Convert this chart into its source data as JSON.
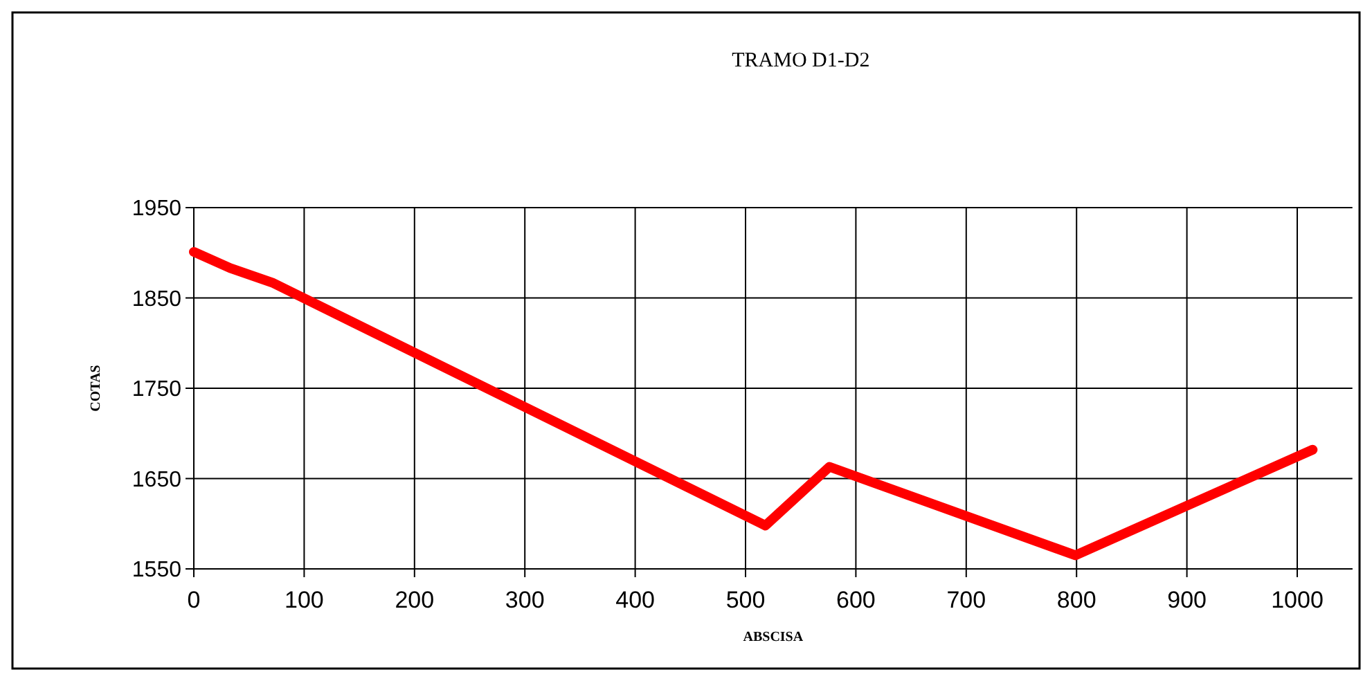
{
  "chart_data": {
    "type": "line",
    "title": "TRAMO D1-D2",
    "xlabel": "ABSCISA",
    "ylabel": "COTAS",
    "x": [
      0,
      33,
      71,
      518,
      576,
      799,
      1014
    ],
    "series": [
      {
        "color": "#ff0000",
        "values": [
          1901,
          1883,
          1867,
          1598,
          1663,
          1565,
          1682
        ]
      }
    ],
    "xlim": [
      0,
      1050
    ],
    "xticks": [
      0,
      100,
      200,
      300,
      400,
      500,
      600,
      700,
      800,
      900,
      1000
    ],
    "ylim": [
      1550,
      1950
    ],
    "yticks": [
      1550,
      1650,
      1750,
      1850,
      1950
    ],
    "grid": true,
    "marker": "none",
    "line_style": "solid"
  }
}
